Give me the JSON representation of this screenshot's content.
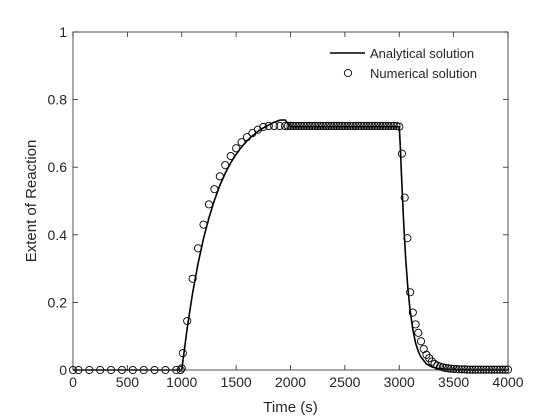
{
  "chart_data": {
    "type": "line",
    "title": "",
    "xlabel": "Time (s)",
    "ylabel": "Extent of Reaction",
    "xlim": [
      0,
      4000
    ],
    "ylim": [
      0,
      1
    ],
    "xticks": [
      0,
      500,
      1000,
      1500,
      2000,
      2500,
      3000,
      3500,
      4000
    ],
    "yticks": [
      0,
      0.2,
      0.4,
      0.6,
      0.8,
      1
    ],
    "xtick_labels": [
      "0",
      "500",
      "1000",
      "1500",
      "2000",
      "2500",
      "3000",
      "3500",
      "4000"
    ],
    "ytick_labels": [
      "0",
      "0.2",
      "0.4",
      "0.6",
      "0.8",
      "1"
    ],
    "grid": false,
    "legend_position": "top-right",
    "series": [
      {
        "name": "Analytical solution",
        "style": "line",
        "color": "#000000",
        "x": [
          0,
          1000,
          1050,
          1100,
          1150,
          1200,
          1250,
          1300,
          1350,
          1400,
          1450,
          1500,
          1550,
          1600,
          1650,
          1700,
          1750,
          1800,
          1850,
          1900,
          1950,
          2000,
          2500,
          3000,
          3010,
          3020,
          3030,
          3040,
          3050,
          3060,
          3080,
          3100,
          3125,
          3150,
          3175,
          3200,
          3250,
          3300,
          3350,
          3400,
          3500,
          3600,
          3700,
          3800,
          4000
        ],
        "y": [
          0,
          0,
          0.124,
          0.228,
          0.315,
          0.389,
          0.45,
          0.502,
          0.546,
          0.582,
          0.613,
          0.638,
          0.66,
          0.678,
          0.693,
          0.706,
          0.716,
          0.725,
          0.733,
          0.739,
          0.74,
          0.72,
          0.72,
          0.72,
          0.66,
          0.58,
          0.51,
          0.44,
          0.38,
          0.325,
          0.24,
          0.175,
          0.12,
          0.08,
          0.055,
          0.038,
          0.018,
          0.009,
          0.005,
          0.003,
          0.001,
          0.0005,
          0.0002,
          0.0001,
          0
        ]
      },
      {
        "name": "Numerical solution",
        "style": "markers",
        "marker": "circle",
        "color": "#000000",
        "x": [
          0,
          50,
          150,
          250,
          350,
          450,
          550,
          650,
          750,
          850,
          950,
          990,
          1000,
          1010,
          1050,
          1100,
          1150,
          1200,
          1250,
          1300,
          1350,
          1400,
          1450,
          1500,
          1550,
          1600,
          1650,
          1700,
          1750,
          1800,
          1850,
          1900,
          1950,
          1975,
          2000,
          2025,
          2050,
          2075,
          2100,
          2125,
          2150,
          2175,
          2200,
          2225,
          2250,
          2275,
          2300,
          2325,
          2350,
          2375,
          2400,
          2425,
          2450,
          2475,
          2500,
          2525,
          2550,
          2575,
          2600,
          2625,
          2650,
          2675,
          2700,
          2725,
          2750,
          2775,
          2800,
          2825,
          2850,
          2875,
          2900,
          2925,
          2950,
          2975,
          3000,
          3025,
          3050,
          3075,
          3100,
          3125,
          3150,
          3175,
          3200,
          3225,
          3250,
          3275,
          3300,
          3325,
          3350,
          3375,
          3400,
          3425,
          3450,
          3475,
          3500,
          3525,
          3550,
          3575,
          3600,
          3625,
          3650,
          3675,
          3700,
          3725,
          3750,
          3775,
          3800,
          3825,
          3850,
          3875,
          3900,
          3925,
          3950,
          3975,
          4000
        ],
        "y": [
          0,
          0,
          0,
          0,
          0,
          0,
          0,
          0,
          0,
          0,
          0,
          0,
          0.005,
          0.05,
          0.145,
          0.27,
          0.36,
          0.43,
          0.49,
          0.535,
          0.573,
          0.606,
          0.633,
          0.656,
          0.674,
          0.689,
          0.701,
          0.711,
          0.719,
          0.722,
          0.722,
          0.722,
          0.722,
          0.722,
          0.722,
          0.722,
          0.722,
          0.722,
          0.722,
          0.722,
          0.722,
          0.722,
          0.722,
          0.722,
          0.722,
          0.722,
          0.722,
          0.722,
          0.722,
          0.722,
          0.722,
          0.722,
          0.722,
          0.722,
          0.722,
          0.722,
          0.722,
          0.722,
          0.722,
          0.722,
          0.722,
          0.722,
          0.722,
          0.722,
          0.722,
          0.722,
          0.722,
          0.722,
          0.722,
          0.722,
          0.722,
          0.722,
          0.722,
          0.722,
          0.72,
          0.64,
          0.51,
          0.39,
          0.23,
          0.17,
          0.135,
          0.11,
          0.085,
          0.062,
          0.045,
          0.035,
          0.025,
          0.018,
          0.013,
          0.01,
          0.008,
          0.006,
          0.005,
          0.004,
          0.003,
          0.003,
          0.002,
          0.002,
          0.002,
          0.001,
          0.001,
          0.001,
          0.001,
          0.001,
          0.001,
          0.001,
          0.001,
          0.001,
          0.001,
          0.001,
          0.001,
          0.001,
          0.001,
          0.001,
          0.001
        ]
      }
    ]
  }
}
